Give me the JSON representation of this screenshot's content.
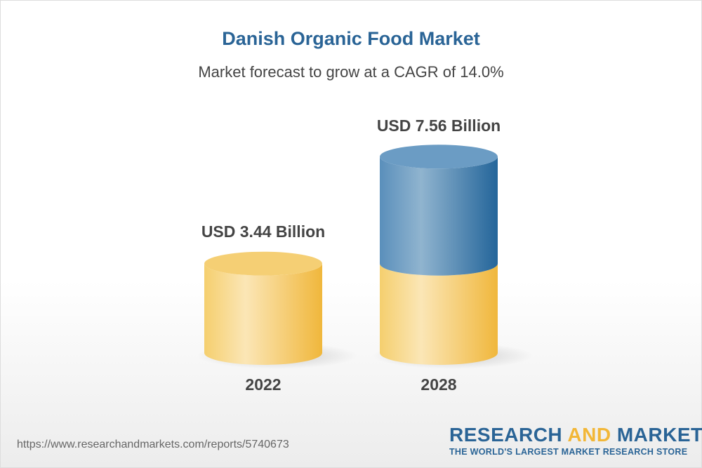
{
  "title": "Danish Organic Food Market",
  "subtitle": "Market forecast to grow at a CAGR of 14.0%",
  "chart_data": {
    "type": "bar",
    "style": "3d-cylinder",
    "categories": [
      "2022",
      "2028"
    ],
    "values": [
      3.44,
      7.56
    ],
    "data_labels": [
      "USD 3.44 Billion",
      "USD 7.56 Billion"
    ],
    "unit": "USD Billion",
    "grid": false,
    "colors": {
      "base": "#f2b938",
      "base_light": "#fbe4b0",
      "growth": "#2a6496",
      "growth_light": "#8fb3cf"
    }
  },
  "footer": {
    "url": "https://www.researchandmarkets.com/reports/5740673",
    "logo_word1": "RESEARCH",
    "logo_word2": "AND",
    "logo_word3": "MARKETS",
    "logo_tagline": "THE WORLD'S LARGEST MARKET RESEARCH STORE"
  }
}
